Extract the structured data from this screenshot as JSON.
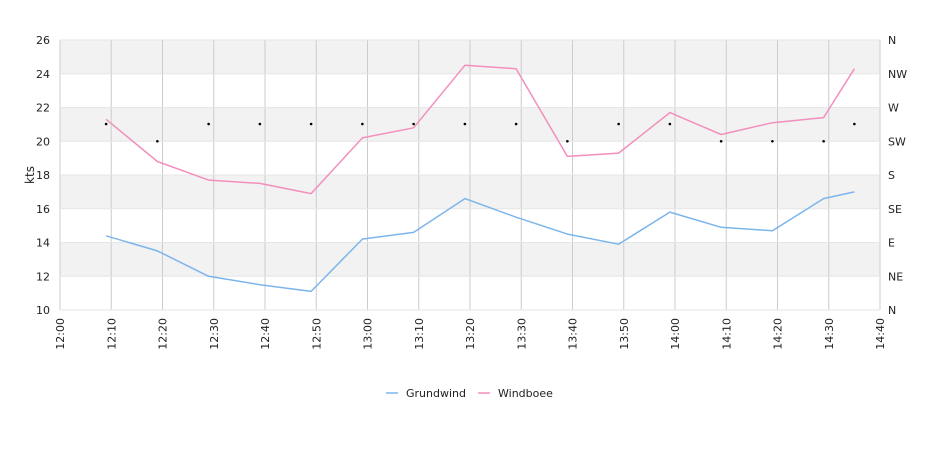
{
  "chart_data": {
    "type": "line",
    "title": "",
    "xlabel": "",
    "ylabel": "kts",
    "ylim": [
      10,
      26
    ],
    "y_ticks": [
      10,
      12,
      14,
      16,
      18,
      20,
      22,
      24,
      26
    ],
    "x_ticks": [
      "12:00",
      "12:10",
      "12:20",
      "12:30",
      "12:40",
      "12:50",
      "13:00",
      "13:10",
      "13:20",
      "13:30",
      "13:40",
      "13:50",
      "14:00",
      "14:10",
      "14:20",
      "14:30",
      "14:40"
    ],
    "x_range": [
      "12:00",
      "14:40"
    ],
    "right_axis": {
      "labels": [
        "N",
        "NE",
        "E",
        "SE",
        "S",
        "SW",
        "W",
        "NW",
        "N"
      ],
      "range": [
        0,
        360
      ]
    },
    "x": [
      "12:09",
      "12:19",
      "12:29",
      "12:39",
      "12:49",
      "12:59",
      "13:09",
      "13:19",
      "13:29",
      "13:39",
      "13:49",
      "13:59",
      "14:09",
      "14:19",
      "14:29",
      "14:35"
    ],
    "series": [
      {
        "name": "Grundwind",
        "color": "#7cb5ec",
        "values": [
          14.4,
          13.5,
          12.0,
          11.5,
          11.1,
          14.2,
          14.6,
          16.6,
          15.5,
          14.5,
          13.9,
          15.8,
          14.9,
          14.7,
          16.6,
          17.0
        ]
      },
      {
        "name": "Windboee",
        "color": "#f28fbd",
        "values": [
          21.3,
          18.8,
          17.7,
          17.5,
          16.9,
          20.2,
          20.8,
          24.5,
          24.3,
          19.1,
          19.3,
          21.7,
          20.4,
          21.1,
          21.4,
          24.3
        ]
      }
    ],
    "direction_markers": {
      "x": [
        "12:09",
        "12:19",
        "12:29",
        "12:39",
        "12:49",
        "12:59",
        "13:09",
        "13:19",
        "13:29",
        "13:39",
        "13:49",
        "13:59",
        "14:09",
        "14:19",
        "14:29",
        "14:35"
      ],
      "values_deg": [
        248,
        225,
        248,
        248,
        248,
        248,
        248,
        248,
        248,
        225,
        248,
        248,
        225,
        225,
        225,
        248
      ]
    },
    "band_color": "#f2f2f2",
    "grid": true,
    "legend_position": "bottom-center"
  }
}
